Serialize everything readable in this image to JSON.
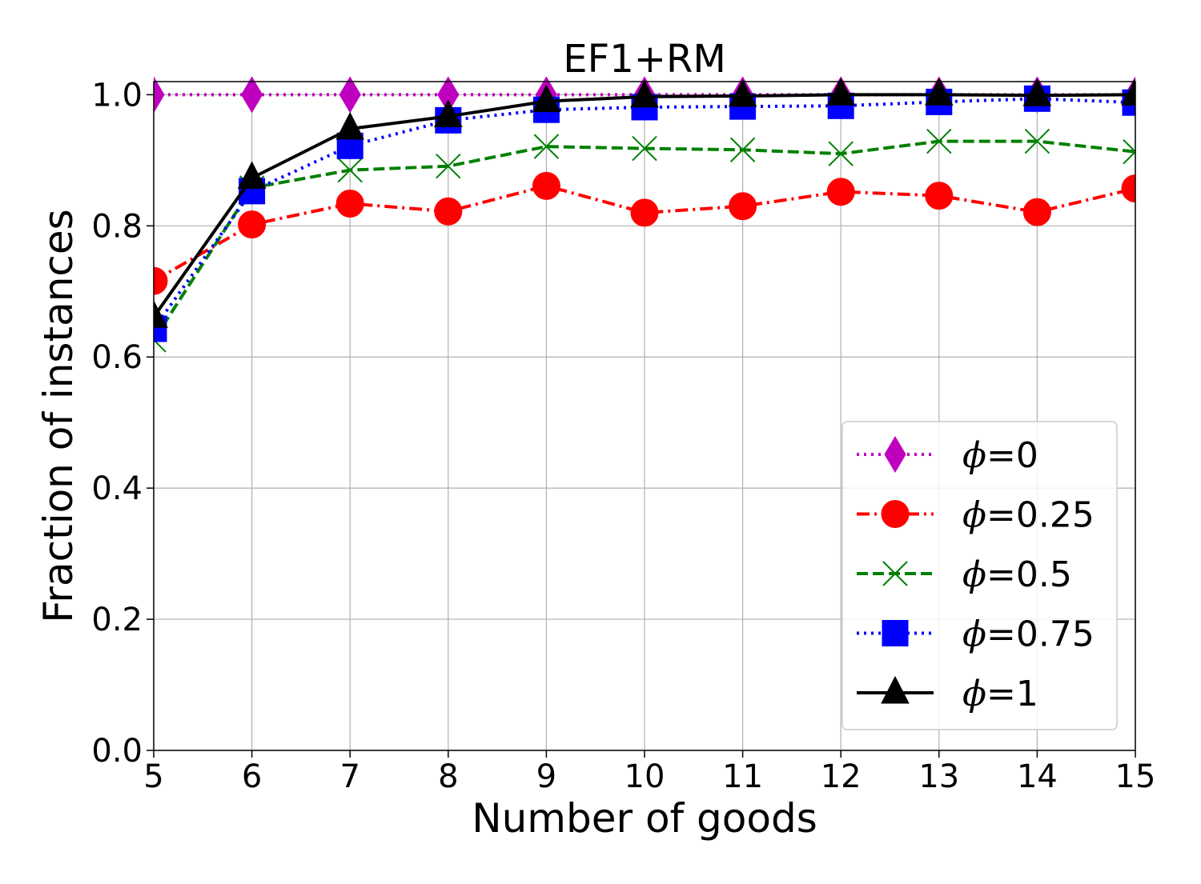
{
  "chart_data": {
    "type": "line",
    "title": "EF1+RM",
    "xlabel": "Number of goods",
    "ylabel": "Fraction of instances",
    "xlim": [
      5,
      15
    ],
    "ylim": [
      0.0,
      1.02
    ],
    "x": [
      5,
      6,
      7,
      8,
      9,
      10,
      11,
      12,
      13,
      14,
      15
    ],
    "xticks": [
      "5",
      "6",
      "7",
      "8",
      "9",
      "10",
      "11",
      "12",
      "13",
      "14",
      "15"
    ],
    "yticks": [
      0.0,
      0.2,
      0.4,
      0.6,
      0.8,
      1.0
    ],
    "ytick_labels": [
      "0.0",
      "0.2",
      "0.4",
      "0.6",
      "0.8",
      "1.0"
    ],
    "grid": true,
    "legend_position": "bottom-right",
    "series": [
      {
        "name": "ϕ=0",
        "name_symbol": "ϕ",
        "name_value": "=0",
        "color": "#bf00bf",
        "line_style": "dotted",
        "marker": "diamond",
        "values": [
          1.0,
          1.0,
          1.0,
          1.0,
          1.0,
          1.0,
          1.0,
          1.0,
          1.0,
          1.0,
          1.0
        ]
      },
      {
        "name": "ϕ=0.25",
        "name_symbol": "ϕ",
        "name_value": "=0.25",
        "color": "#ff0000",
        "line_style": "dashdot",
        "marker": "circle",
        "values": [
          0.716,
          0.802,
          0.834,
          0.822,
          0.861,
          0.82,
          0.83,
          0.852,
          0.846,
          0.821,
          0.857
        ]
      },
      {
        "name": "ϕ=0.5",
        "name_symbol": "ϕ",
        "name_value": "=0.5",
        "color": "#008000",
        "line_style": "dashed",
        "marker": "x",
        "values": [
          0.626,
          0.858,
          0.885,
          0.891,
          0.921,
          0.918,
          0.916,
          0.91,
          0.929,
          0.929,
          0.913
        ]
      },
      {
        "name": "ϕ=0.75",
        "name_symbol": "ϕ",
        "name_value": "=0.75",
        "color": "#0000ff",
        "line_style": "dotted",
        "marker": "square",
        "values": [
          0.643,
          0.853,
          0.922,
          0.961,
          0.977,
          0.981,
          0.982,
          0.983,
          0.989,
          0.994,
          0.988
        ]
      },
      {
        "name": "ϕ=1",
        "name_symbol": "ϕ",
        "name_value": "=1",
        "color": "#000000",
        "line_style": "solid",
        "marker": "triangle",
        "values": [
          0.661,
          0.873,
          0.948,
          0.967,
          0.99,
          0.997,
          0.998,
          1.0,
          1.0,
          0.999,
          1.0
        ]
      }
    ]
  }
}
